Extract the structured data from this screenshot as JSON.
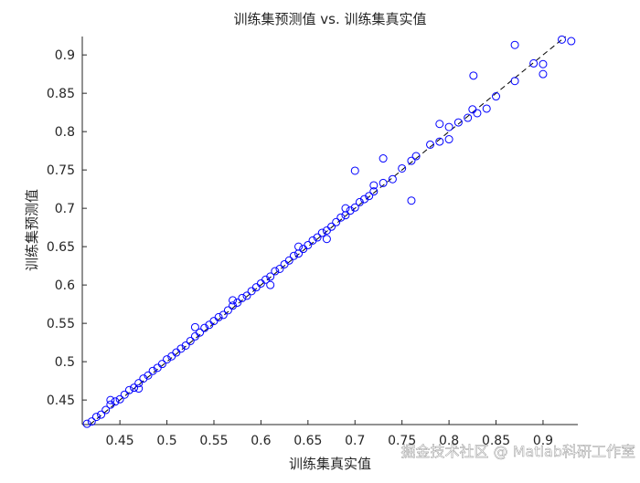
{
  "chart_data": {
    "type": "scatter",
    "title": "训练集预测值 vs. 训练集真实值",
    "xlabel": "训练集真实值",
    "ylabel": "训练集预测值",
    "watermark": "掘金技术社区 @ Matlab科研工作室",
    "color": "#0000ff",
    "xlim": [
      0.41,
      0.937
    ],
    "ylim": [
      0.418,
      0.924
    ],
    "xticks": [
      0.45,
      0.5,
      0.55,
      0.6,
      0.65,
      0.7,
      0.75,
      0.8,
      0.85,
      0.9
    ],
    "yticks": [
      0.45,
      0.5,
      0.55,
      0.6,
      0.65,
      0.7,
      0.75,
      0.8,
      0.85,
      0.9
    ],
    "x": [
      0.415,
      0.42,
      0.425,
      0.43,
      0.435,
      0.44,
      0.445,
      0.45,
      0.455,
      0.46,
      0.465,
      0.47,
      0.475,
      0.48,
      0.485,
      0.49,
      0.495,
      0.5,
      0.505,
      0.51,
      0.515,
      0.52,
      0.525,
      0.53,
      0.535,
      0.54,
      0.545,
      0.55,
      0.555,
      0.56,
      0.565,
      0.57,
      0.575,
      0.58,
      0.585,
      0.59,
      0.595,
      0.6,
      0.605,
      0.61,
      0.615,
      0.62,
      0.625,
      0.63,
      0.635,
      0.64,
      0.645,
      0.65,
      0.655,
      0.66,
      0.665,
      0.67,
      0.675,
      0.68,
      0.685,
      0.69,
      0.695,
      0.7,
      0.705,
      0.71,
      0.715,
      0.72,
      0.73,
      0.74,
      0.75,
      0.76,
      0.765,
      0.78,
      0.79,
      0.8,
      0.81,
      0.82,
      0.825,
      0.83,
      0.85,
      0.87,
      0.89,
      0.9,
      0.92,
      0.93,
      0.7,
      0.73,
      0.87,
      0.826,
      0.79,
      0.76,
      0.44,
      0.47,
      0.53,
      0.57,
      0.61,
      0.64,
      0.67,
      0.69,
      0.72,
      0.8,
      0.84,
      0.9
    ],
    "y": [
      0.419,
      0.422,
      0.428,
      0.431,
      0.437,
      0.444,
      0.448,
      0.451,
      0.457,
      0.463,
      0.466,
      0.472,
      0.478,
      0.482,
      0.488,
      0.492,
      0.497,
      0.503,
      0.507,
      0.512,
      0.517,
      0.521,
      0.527,
      0.533,
      0.538,
      0.544,
      0.548,
      0.553,
      0.558,
      0.561,
      0.567,
      0.573,
      0.577,
      0.583,
      0.586,
      0.592,
      0.597,
      0.602,
      0.607,
      0.611,
      0.618,
      0.621,
      0.627,
      0.632,
      0.638,
      0.641,
      0.647,
      0.652,
      0.658,
      0.662,
      0.668,
      0.671,
      0.676,
      0.682,
      0.688,
      0.691,
      0.697,
      0.701,
      0.708,
      0.712,
      0.716,
      0.722,
      0.733,
      0.738,
      0.752,
      0.762,
      0.768,
      0.783,
      0.787,
      0.806,
      0.812,
      0.818,
      0.829,
      0.824,
      0.846,
      0.866,
      0.889,
      0.888,
      0.92,
      0.918,
      0.749,
      0.765,
      0.913,
      0.873,
      0.81,
      0.71,
      0.45,
      0.465,
      0.545,
      0.58,
      0.6,
      0.65,
      0.66,
      0.7,
      0.73,
      0.79,
      0.83,
      0.875
    ]
  }
}
